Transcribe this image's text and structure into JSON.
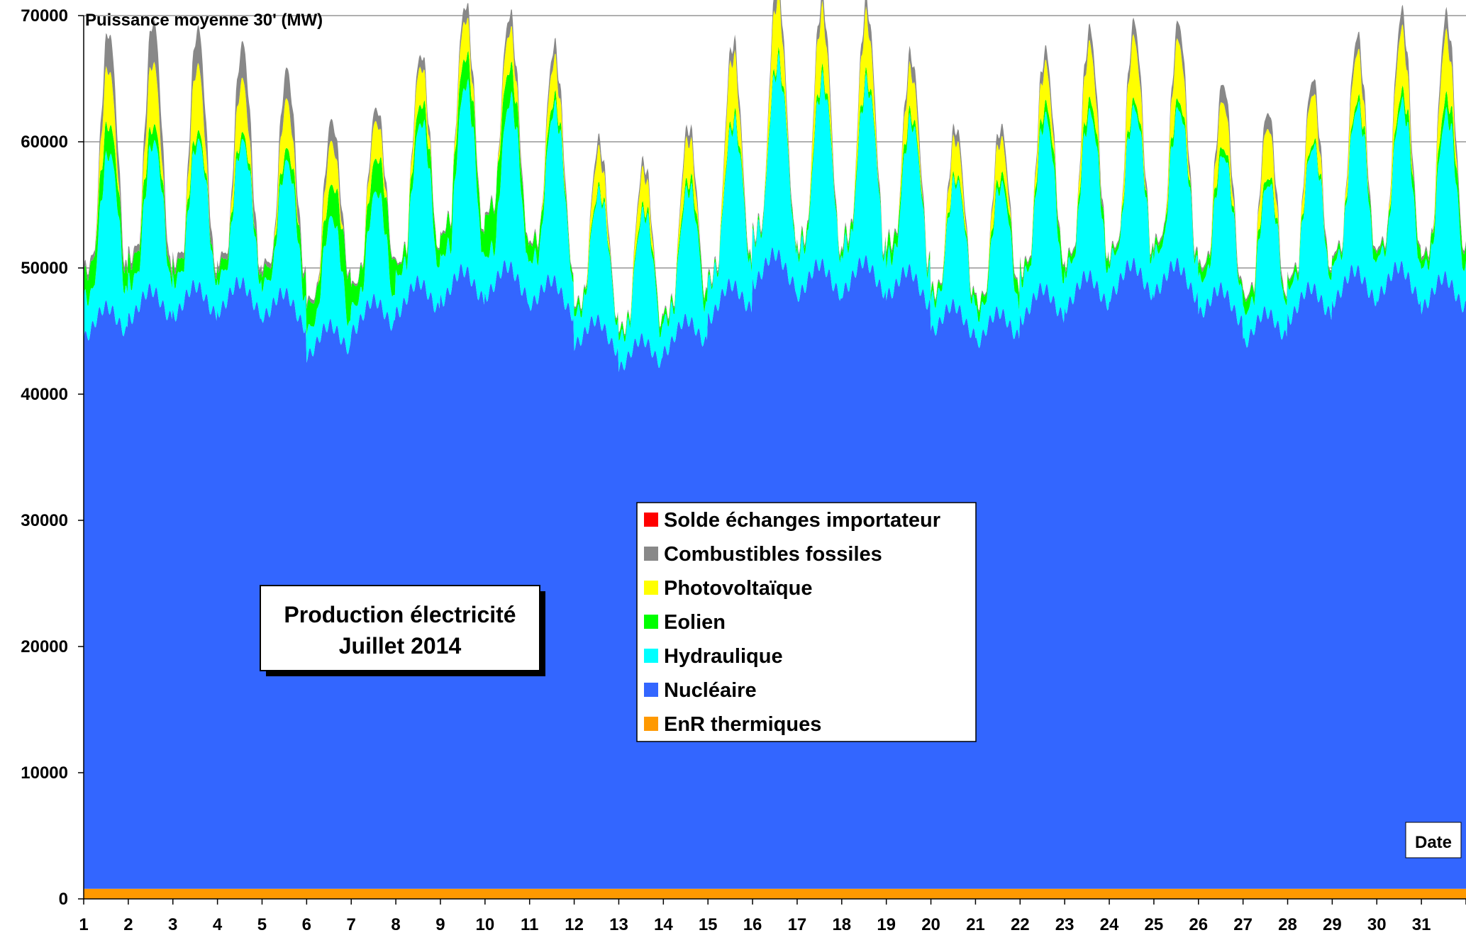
{
  "chart_data": {
    "type": "area",
    "stacked": true,
    "title": "Production électricité",
    "subtitle": "Juillet 2014",
    "ylabel": "Puissance moyenne 30' (MW)",
    "xlabel": "Date",
    "ylim": [
      0,
      70000
    ],
    "yticks": [
      0,
      10000,
      20000,
      30000,
      40000,
      50000,
      60000,
      70000
    ],
    "xlim": [
      1,
      32
    ],
    "categories": [
      "1",
      "2",
      "3",
      "4",
      "5",
      "6",
      "7",
      "8",
      "9",
      "10",
      "11",
      "12",
      "13",
      "14",
      "15",
      "16",
      "17",
      "18",
      "19",
      "20",
      "21",
      "22",
      "23",
      "24",
      "25",
      "26",
      "27",
      "28",
      "29",
      "30",
      "31"
    ],
    "grid": true,
    "legend_position": "center",
    "series": [
      {
        "name": "EnR thermiques",
        "color": "#ff9900",
        "values": [
          800,
          800,
          800,
          800,
          800,
          800,
          800,
          800,
          800,
          800,
          800,
          800,
          800,
          800,
          800,
          800,
          800,
          800,
          800,
          800,
          800,
          800,
          800,
          800,
          800,
          800,
          800,
          800,
          800,
          800,
          800
        ]
      },
      {
        "name": "Nucléaire",
        "color": "#3366ff",
        "values": [
          45000,
          46500,
          46800,
          47200,
          46800,
          43500,
          45500,
          47000,
          48000,
          48500,
          47800,
          44500,
          42500,
          43800,
          46500,
          49500,
          48500,
          48800,
          48500,
          45500,
          44500,
          46500,
          47500,
          48500,
          48800,
          47000,
          44500,
          46500,
          48000,
          48500,
          47500
        ]
      },
      {
        "name": "Hydraulique",
        "color": "#00ffff",
        "values": [
          8500,
          8200,
          8000,
          7800,
          7500,
          6000,
          5500,
          8500,
          10500,
          9000,
          10000,
          7000,
          7000,
          7000,
          8500,
          10500,
          10000,
          10000,
          8500,
          7000,
          6500,
          9500,
          9000,
          8500,
          8800,
          7500,
          7000,
          7500,
          9000,
          9000,
          9000
        ]
      },
      {
        "name": "Eolien",
        "color": "#00ff00",
        "values": [
          1800,
          1200,
          800,
          800,
          1200,
          3000,
          2500,
          1000,
          1500,
          2500,
          1000,
          500,
          600,
          800,
          400,
          300,
          400,
          400,
          800,
          500,
          1000,
          1000,
          800,
          400,
          500,
          600,
          800,
          600,
          700,
          800,
          1000
        ]
      },
      {
        "name": "Photovoltaïque",
        "color": "#ffff00",
        "values": [
          2200,
          2500,
          2800,
          2200,
          2000,
          1800,
          1500,
          1500,
          1500,
          1500,
          1500,
          1500,
          1400,
          1500,
          2500,
          2500,
          2500,
          2500,
          1800,
          1500,
          1500,
          1500,
          2200,
          2500,
          2500,
          1800,
          2000,
          2000,
          1800,
          2500,
          2500
        ]
      },
      {
        "name": "Combustibles fossiles",
        "color": "#888888",
        "values": [
          1500,
          1800,
          1600,
          1600,
          1400,
          1000,
          600,
          500,
          600,
          700,
          700,
          500,
          400,
          500,
          600,
          700,
          700,
          700,
          700,
          500,
          500,
          600,
          700,
          700,
          800,
          800,
          700,
          600,
          700,
          800,
          900
        ]
      },
      {
        "name": "Solde échanges importateur",
        "color": "#ff0000",
        "values": [
          0,
          0,
          0,
          0,
          0,
          0,
          0,
          0,
          0,
          0,
          0,
          0,
          0,
          0,
          0,
          0,
          0,
          0,
          0,
          0,
          0,
          0,
          0,
          0,
          0,
          0,
          0,
          0,
          0,
          0,
          0
        ]
      }
    ],
    "legend_order": [
      "Solde échanges importateur",
      "Combustibles fossiles",
      "Photovoltaïque",
      "Eolien",
      "Hydraulique",
      "Nucléaire",
      "EnR thermiques"
    ]
  }
}
